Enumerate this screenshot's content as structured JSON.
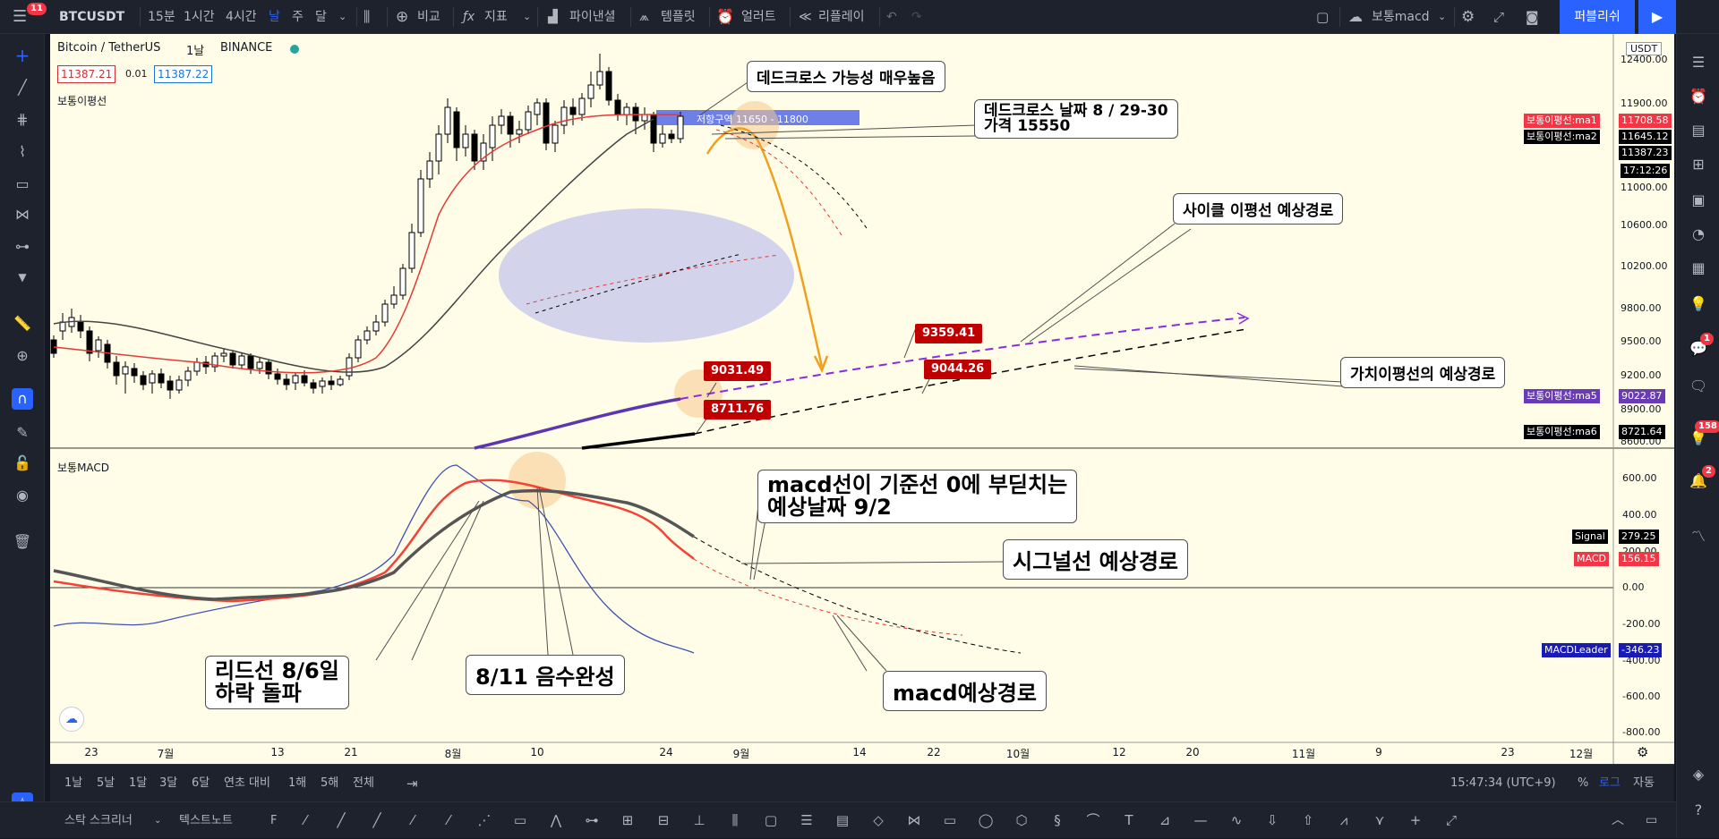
{
  "topbar": {
    "menu_badge": "11",
    "symbol": "BTCUSDT",
    "intervals": [
      "15분",
      "1시간",
      "4시간",
      "날",
      "주",
      "달"
    ],
    "active_interval": "날",
    "compare_label": "비교",
    "indicators_label": "지표",
    "financials_label": "파이낸셜",
    "templates_label": "템플릿",
    "alert_label": "얼러트",
    "replay_label": "리플레이",
    "layout_name": "보통macd",
    "publish_label": "퍼블리쉬"
  },
  "chart": {
    "title": "Bitcoin / TetherUS",
    "interval": "1날",
    "exchange": "BINANCE",
    "bid": "11387.21",
    "spread": "0.01",
    "ask": "11387.22",
    "main_indicator": "보통이평선",
    "sub_indicator": "보통MACD",
    "currency": "USDT"
  },
  "price_scale": [
    "12400.00",
    "11900.00",
    "11400.00",
    "11000.00",
    "10600.00",
    "10200.00",
    "9800.00",
    "9500.00",
    "9200.00",
    "8900.00",
    "8600.00"
  ],
  "macd_scale": [
    "600.00",
    "400.00",
    "200.00",
    "0.00",
    "-200.00",
    "-400.00",
    "-600.00",
    "-800.00"
  ],
  "axis_tags": {
    "ma1": {
      "label": "보통이평선:ma1",
      "value": "11708.58",
      "color": "#f23645"
    },
    "ma2": {
      "label": "보통이평선:ma2",
      "value": "11645.12",
      "color": "#000000"
    },
    "last": {
      "value": "11387.23"
    },
    "time": {
      "value": "17:12:26"
    },
    "ma5": {
      "label": "보통이평선:ma5",
      "value": "9022.87",
      "color": "#6a3cb4"
    },
    "ma6": {
      "label": "보통이평선:ma6",
      "value": "8721.64",
      "color": "#000000"
    },
    "signal": {
      "label": "Signal",
      "value": "279.25",
      "color": "#000000"
    },
    "macd": {
      "label": "MACD",
      "value": "156.15",
      "color": "#f23645"
    },
    "macdleader": {
      "label": "MACDLeader",
      "value": "-346.23",
      "color": "#1a1ab4"
    }
  },
  "time_axis": [
    "23",
    "7월",
    "13",
    "21",
    "8월",
    "10",
    "24",
    "9월",
    "14",
    "22",
    "10월",
    "12",
    "20",
    "11월",
    "9",
    "23",
    "12월"
  ],
  "zone_label": "저항구역 11650 - 11800",
  "annotations": {
    "deadcross_high": "데드크로스 가능성 매우높음",
    "deadcross_date_l1": "데드크로스 날짜 8 / 29-30",
    "deadcross_date_l2": "가격 15550",
    "cycle_path": "사이클 이평선 예상경로",
    "value_path": "가치이평선의 예상경로",
    "macd_zero_l1": "macd선이 기준선 0에 부딛치는",
    "macd_zero_l2": "예상날짜 9/2",
    "signal_path": "시그널선 예상경로",
    "leader_l1": "리드선 8/6일",
    "leader_l2": "하락 돌파",
    "negative": "8/11 음수완성",
    "macd_path": "macd예상경로"
  },
  "price_tags": [
    "9359.41",
    "9031.49",
    "9044.26",
    "8711.76"
  ],
  "bottombar": {
    "ranges": [
      "1날",
      "5날",
      "1달",
      "3달",
      "6달",
      "연초 대비",
      "1해",
      "5해",
      "전체"
    ],
    "clock": "15:47:34 (UTC+9)",
    "pct": "%",
    "log": "로그",
    "auto": "자동"
  },
  "drawbar": {
    "tab1": "스탁 스크리너",
    "tab2": "텍스트노트",
    "tab3": "F"
  },
  "right_badges": {
    "chat": "1",
    "ideas": "158",
    "notif": "2"
  }
}
